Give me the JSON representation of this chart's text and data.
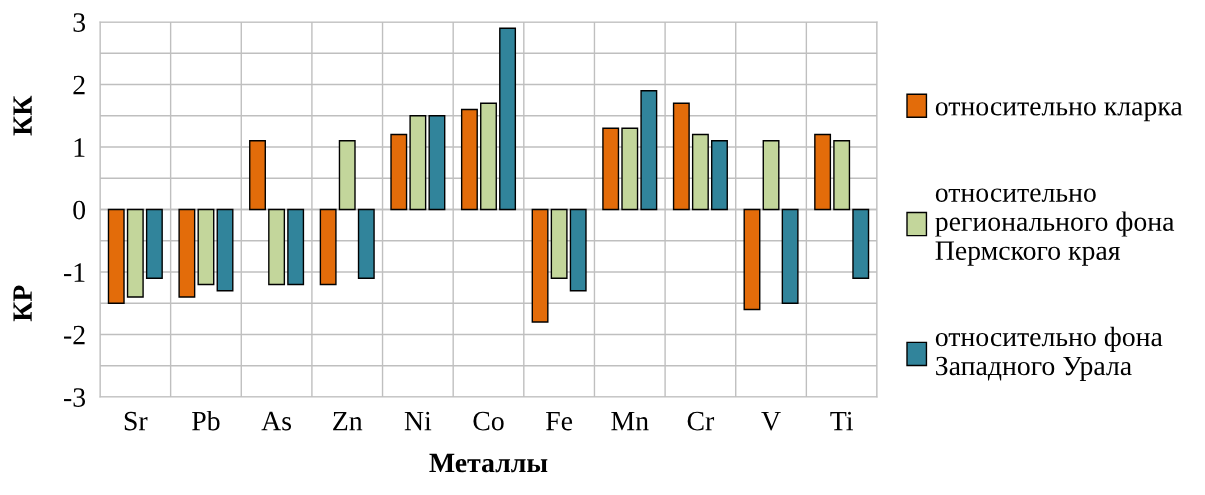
{
  "chart_data": {
    "type": "bar",
    "xlabel": "Металлы",
    "annotations": [
      "КК",
      "КР"
    ],
    "categories": [
      "Sr",
      "Pb",
      "As",
      "Zn",
      "Ni",
      "Co",
      "Fe",
      "Mn",
      "Cr",
      "V",
      "Ti"
    ],
    "series": [
      {
        "name": "относительно кларка",
        "color": "#e36c0a",
        "values": [
          -1.5,
          -1.4,
          1.1,
          -1.2,
          1.2,
          1.6,
          -1.8,
          1.3,
          1.7,
          -1.6,
          1.2
        ]
      },
      {
        "name": "относительно\nрегионального фона\nПермского края",
        "color": "#c3d69b",
        "values": [
          -1.4,
          -1.2,
          -1.2,
          1.1,
          1.5,
          1.7,
          -1.1,
          1.3,
          1.2,
          1.1,
          1.1
        ]
      },
      {
        "name": "относительно фона\nЗападного Урала",
        "color": "#31849b",
        "values": [
          -1.1,
          -1.3,
          -1.2,
          -1.1,
          1.5,
          2.9,
          -1.3,
          1.9,
          1.1,
          -1.5,
          -1.1
        ]
      }
    ],
    "ylim": [
      -3,
      3
    ],
    "yticks": [
      -3,
      {
        "value": -2.5,
        "label": null
      },
      -2,
      {
        "value": -1.5,
        "label": null
      },
      -1,
      {
        "value": -0.5,
        "label": null
      },
      0,
      {
        "value": 0.5,
        "label": null
      },
      1,
      {
        "value": 1.5,
        "label": null
      },
      2,
      {
        "value": 2.5,
        "label": null
      },
      3
    ],
    "grid": true,
    "legend": "right"
  }
}
